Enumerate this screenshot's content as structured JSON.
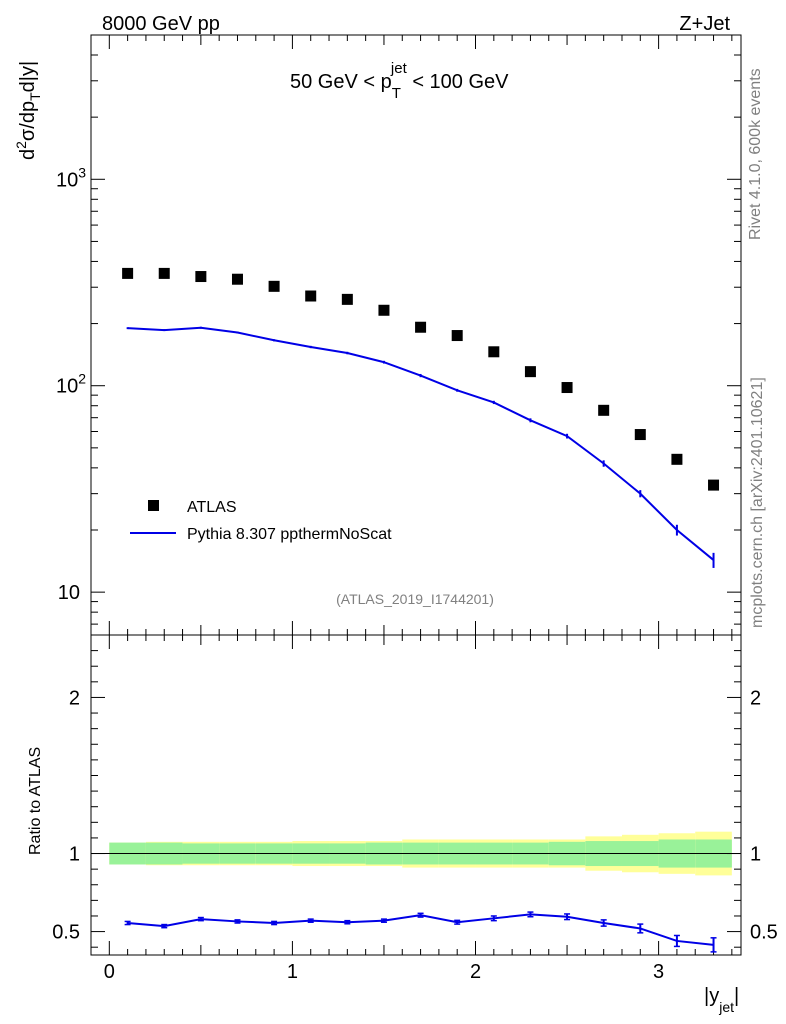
{
  "header": {
    "left": "8000 GeV pp",
    "right": "Z+Jet",
    "side_rivet": "Rivet 4.1.0,  600k events",
    "side_mcplots": "mcplots.cern.ch [arXiv:2401.10621]",
    "analysis_id": "(ATLAS_2019_I1744201)"
  },
  "bin_label": {
    "prefix": "50 GeV < p",
    "sub": "T",
    "sup": "jet",
    "suffix": " < 100 GeV"
  },
  "colors": {
    "data": "#000000",
    "mc": "#0000e6",
    "band_inner": "#99f299",
    "band_outer": "#ffff99"
  },
  "chart_data": [
    {
      "type": "scatter",
      "panel": "main",
      "yscale": "log",
      "ylim": [
        6.2,
        5000
      ],
      "xlim": [
        -0.1,
        3.45
      ],
      "ylabel": {
        "d": "d",
        "sup2": "2",
        "sigma": "σ/dp",
        "subT": "T",
        "rest": "d|y|"
      },
      "yticks": [
        {
          "value": 10,
          "label": "10"
        },
        {
          "value": 100,
          "label": "10",
          "sup": "2"
        },
        {
          "value": 1000,
          "label": "10",
          "sup": "3"
        }
      ],
      "x": [
        0.1,
        0.3,
        0.5,
        0.7,
        0.9,
        1.1,
        1.3,
        1.5,
        1.7,
        1.9,
        2.1,
        2.3,
        2.5,
        2.7,
        2.9,
        3.1,
        3.3
      ],
      "series": [
        {
          "name": "ATLAS",
          "style": "markers",
          "values": [
            350,
            350,
            338,
            328,
            303,
            272,
            262,
            232,
            192,
            175,
            146,
            117,
            98,
            76,
            58,
            44,
            33
          ]
        },
        {
          "name": "Pythia 8.307 ppthermNoScat",
          "style": "line",
          "values": [
            190,
            186,
            191,
            181,
            166,
            154,
            144,
            130,
            112,
            95,
            83,
            68,
            57,
            42,
            30,
            20,
            14.3
          ],
          "errors": [
            2,
            2,
            2,
            2,
            2,
            2,
            2,
            2,
            2,
            1.5,
            1.5,
            1.5,
            1.5,
            1.5,
            1.2,
            1.2,
            1.2
          ]
        }
      ],
      "legend": [
        {
          "label": "ATLAS",
          "marker": "square"
        },
        {
          "label": "Pythia 8.307 ppthermNoScat",
          "marker": "line"
        }
      ]
    },
    {
      "type": "line",
      "panel": "ratio",
      "ylim": [
        0.35,
        2.4
      ],
      "xlim": [
        -0.1,
        3.45
      ],
      "ylabel": "Ratio to ATLAS",
      "xlabel": {
        "main": "|y",
        "sub": "jet",
        "end": "|"
      },
      "xticks": [
        {
          "value": 0,
          "label": "0"
        },
        {
          "value": 1,
          "label": "1"
        },
        {
          "value": 2,
          "label": "2"
        },
        {
          "value": 3,
          "label": "3"
        }
      ],
      "yticks": [
        {
          "value": 0.5,
          "label": "0.5"
        },
        {
          "value": 1,
          "label": "1"
        },
        {
          "value": 2,
          "label": "2"
        }
      ],
      "bin_edges": [
        0,
        0.2,
        0.4,
        0.6,
        0.8,
        1.0,
        1.2,
        1.4,
        1.6,
        1.8,
        2.0,
        2.2,
        2.4,
        2.6,
        2.8,
        3.0,
        3.2,
        3.4
      ],
      "band_inner": [
        0.07,
        0.07,
        0.065,
        0.065,
        0.065,
        0.065,
        0.065,
        0.07,
        0.07,
        0.07,
        0.07,
        0.07,
        0.075,
        0.08,
        0.08,
        0.09,
        0.09
      ],
      "band_outer": [
        0.07,
        0.075,
        0.075,
        0.075,
        0.075,
        0.08,
        0.08,
        0.08,
        0.09,
        0.09,
        0.09,
        0.09,
        0.09,
        0.11,
        0.12,
        0.13,
        0.14
      ],
      "x": [
        0.1,
        0.3,
        0.5,
        0.7,
        0.9,
        1.1,
        1.3,
        1.5,
        1.7,
        1.9,
        2.1,
        2.3,
        2.5,
        2.7,
        2.9,
        3.1,
        3.3
      ],
      "values": [
        0.555,
        0.535,
        0.58,
        0.565,
        0.555,
        0.57,
        0.56,
        0.57,
        0.605,
        0.56,
        0.585,
        0.61,
        0.595,
        0.555,
        0.52,
        0.44,
        0.415
      ],
      "errors": [
        0.01,
        0.01,
        0.01,
        0.01,
        0.01,
        0.01,
        0.01,
        0.01,
        0.012,
        0.012,
        0.015,
        0.015,
        0.018,
        0.02,
        0.028,
        0.035,
        0.045
      ]
    }
  ]
}
